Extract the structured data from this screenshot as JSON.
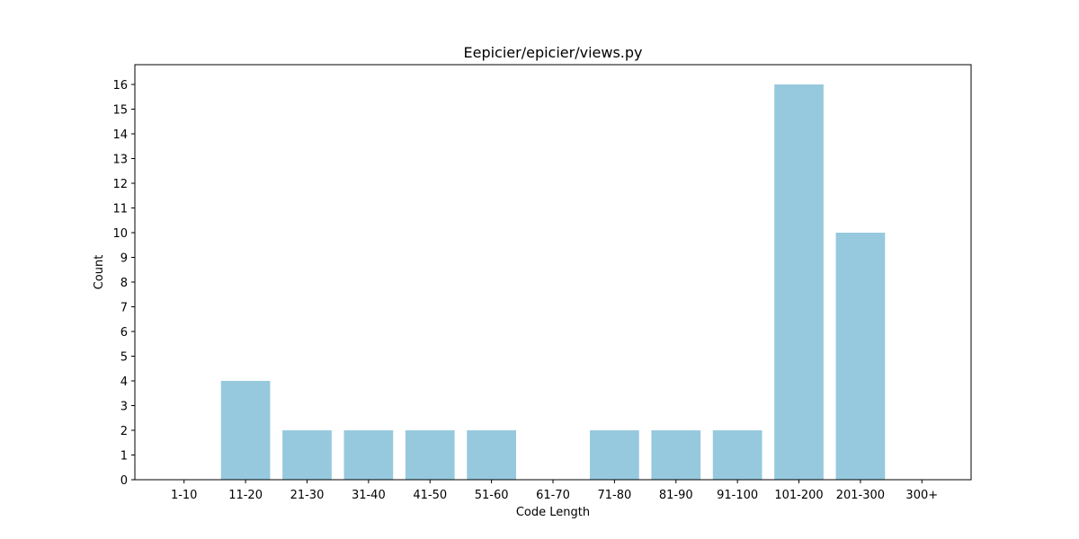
{
  "chart_data": {
    "type": "bar",
    "title": "Eepicier/epicier/views.py",
    "xlabel": "Code Length",
    "ylabel": "Count",
    "categories": [
      "1-10",
      "11-20",
      "21-30",
      "31-40",
      "41-50",
      "51-60",
      "61-70",
      "71-80",
      "81-90",
      "91-100",
      "101-200",
      "201-300",
      "300+"
    ],
    "values": [
      0,
      4,
      2,
      2,
      2,
      2,
      0,
      2,
      2,
      2,
      16,
      10,
      0
    ],
    "yticks": [
      0,
      1,
      2,
      3,
      4,
      5,
      6,
      7,
      8,
      9,
      10,
      11,
      12,
      13,
      14,
      15,
      16
    ],
    "ylim": [
      0,
      16.8
    ],
    "grid": false,
    "legend": "none",
    "bar_color": "#96c9dd"
  }
}
